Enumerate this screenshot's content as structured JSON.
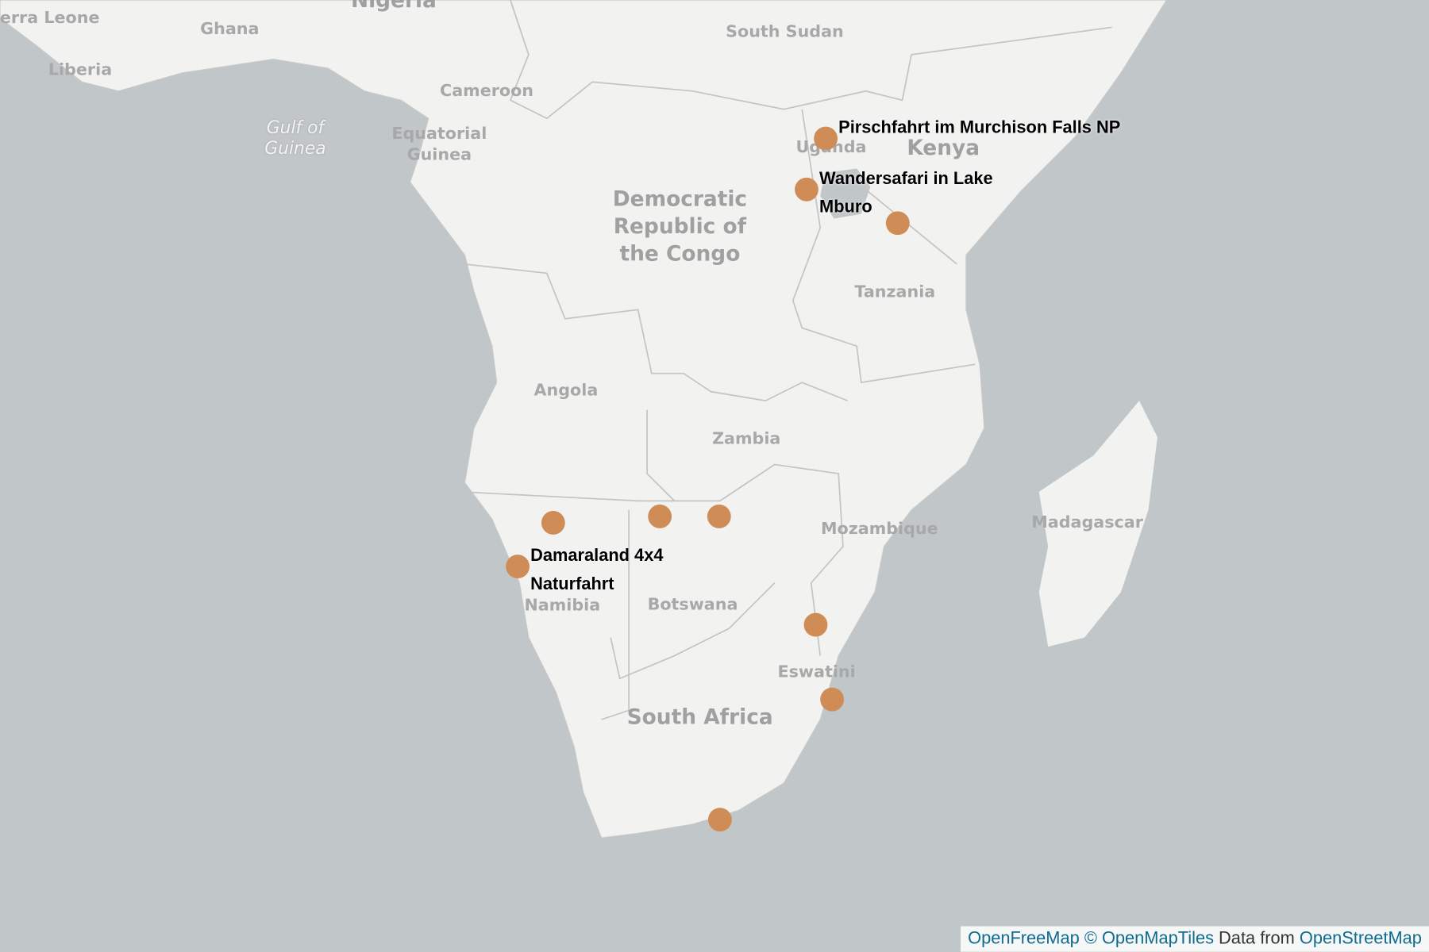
{
  "map": {
    "countries": [
      "Sierra Leone",
      "Ghana",
      "Nigeria",
      "Liberia",
      "Cameroon",
      "Equatorial Guinea",
      "South Sudan",
      "Kenya",
      "Uganda",
      "Democratic Republic of the Congo",
      "Tanzania",
      "Angola",
      "Zambia",
      "Mozambique",
      "Madagascar",
      "Namibia",
      "Botswana",
      "Eswatini",
      "South Africa"
    ],
    "water": [
      "Gulf of Guinea"
    ],
    "places": [
      "Pirschfahrt im Murchison Falls NP",
      "Wandersafari in Lake Mburo",
      "Damaraland 4x4 Naturfahrt"
    ],
    "attribution": {
      "links": [
        "OpenFreeMap",
        "© OpenMapTiles",
        "OpenStreetMap"
      ],
      "text": "Data from"
    }
  }
}
